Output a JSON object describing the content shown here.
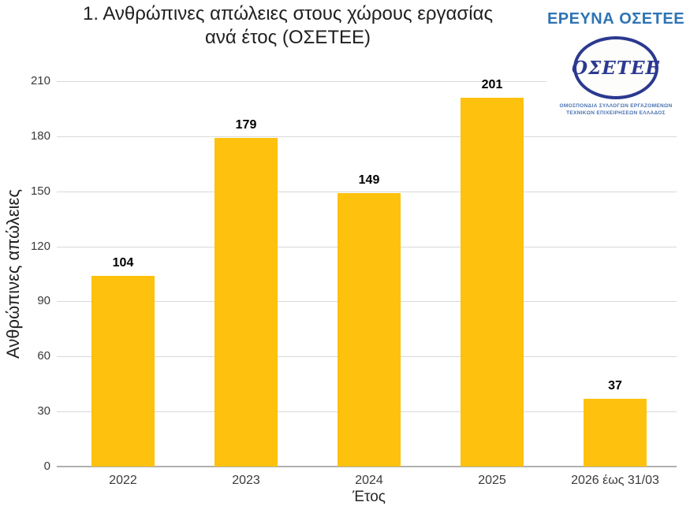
{
  "header": {
    "title_line1": "1. Ανθρώπινες απώλειες στους χώρους εργασίας",
    "title_line2": "ανά έτος (ΟΣΕΤΕΕ)"
  },
  "logo": {
    "heading": "ΕΡΕΥΝΑ ΟΣΕΤΕΕ",
    "heading_color": "#2e74b5",
    "oval_text": "ΟΣΕΤΕΕ",
    "oval_color": "#2b3990",
    "org_line1": "ΟΜΟΣΠΟΝΔΙΑ ΣΥΛΛΟΓΩΝ ΕΡΓΑΖΟΜΕΝΩΝ",
    "org_line2": "ΤΕΧΝΙΚΩΝ ΕΠΙΧΕΙΡΗΣΕΩΝ ΕΛΛΑΔΟΣ",
    "org_color": "#4a72b2"
  },
  "chart_data": {
    "type": "bar",
    "title": "1. Ανθρώπινες απώλειες στους χώρους εργασίας ανά έτος (ΟΣΕΤΕΕ)",
    "categories": [
      "2022",
      "2023",
      "2024",
      "2025",
      "2026 έως 31/03"
    ],
    "values": [
      104,
      179,
      149,
      201,
      37
    ],
    "xlabel": "Έτος",
    "ylabel": "Ανθρώπινες απώλειες",
    "ylim": [
      0,
      210
    ],
    "yticks": [
      0,
      30,
      60,
      90,
      120,
      150,
      180,
      210
    ],
    "grid": true,
    "legend": false,
    "bar_color": "#fec10d",
    "gridline_color": "#d9d9d9",
    "baseline_color": "#b0b0b0"
  }
}
